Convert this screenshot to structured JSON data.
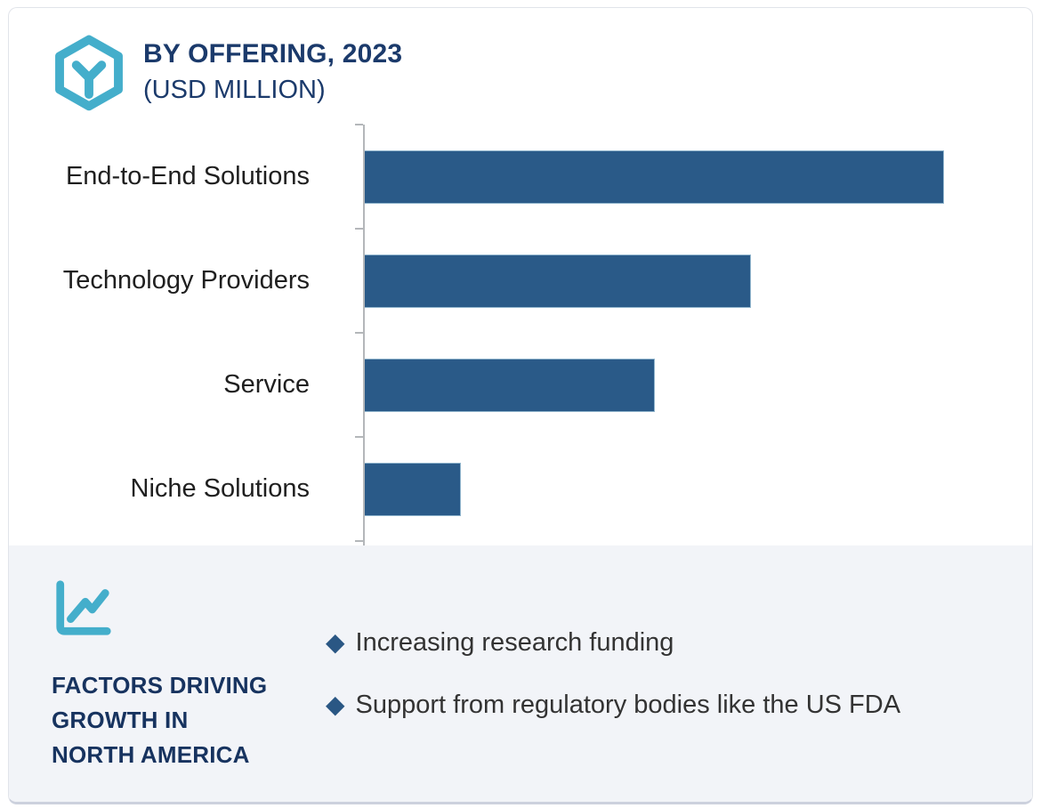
{
  "header": {
    "title_line1": "BY OFFERING, 2023",
    "title_line2": "(USD MILLION)"
  },
  "chart_data": {
    "type": "bar",
    "orientation": "horizontal",
    "title": "BY OFFERING, 2023 (USD MILLION)",
    "categories": [
      "End-to-End Solutions",
      "Technology Providers",
      "Service",
      "Niche Solutions"
    ],
    "values": [
      100,
      66.7,
      50.2,
      16.7
    ],
    "value_note": "relative magnitudes (% of largest bar); no numeric axis labels shown",
    "xlabel": "",
    "ylabel": "",
    "xlim": [
      0,
      115
    ],
    "grid": false,
    "legend": false,
    "bar_color": "#2a5a88",
    "axis_color": "#b4b7ba"
  },
  "factors": {
    "heading": "FACTORS DRIVING\nGROWTH IN\nNORTH AMERICA",
    "bullet_marker": "◆",
    "bullets": [
      "Increasing research funding",
      "Support from regulatory bodies like the US FDA"
    ]
  },
  "colors": {
    "accent_teal": "#44aecb",
    "navy": "#1b3a6b",
    "bar_blue": "#2a5a88",
    "panel_bg": "#f2f4f8",
    "text_dark": "#1f1f1f",
    "card_border": "#e1e4ea"
  }
}
